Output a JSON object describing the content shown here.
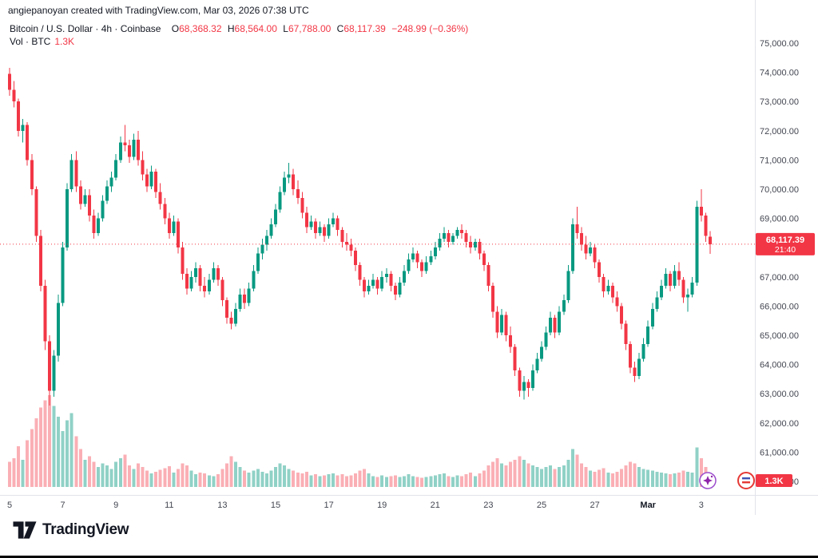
{
  "attribution": "angiepanoyan created with TradingView.com, Mar 03, 2026 07:38 UTC",
  "legend": {
    "title": "Bitcoin / U.S. Dollar · 4h · Coinbase",
    "o_label": "O",
    "o": "68,368.32",
    "h_label": "H",
    "h": "68,564.00",
    "l_label": "L",
    "l": "67,788.00",
    "c_label": "C",
    "c": "68,117.39",
    "change": "−248.99 (−0.36%)",
    "volume_label": "Vol · BTC",
    "volume_value": "1.3K"
  },
  "last_price": {
    "value": "68,117.39",
    "countdown": "21:40"
  },
  "volume_badge": "1.3K",
  "price_axis": {
    "ticks": [
      "75,000.00",
      "74,000.00",
      "73,000.00",
      "72,000.00",
      "71,000.00",
      "70,000.00",
      "69,000.00",
      "68,000.00",
      "67,000.00",
      "66,000.00",
      "65,000.00",
      "64,000.00",
      "63,000.00",
      "62,000.00",
      "61,000.00",
      "60,000.00"
    ]
  },
  "time_axis": {
    "labels": [
      {
        "text": "5",
        "candle": 0
      },
      {
        "text": "7",
        "candle": 12
      },
      {
        "text": "9",
        "candle": 24
      },
      {
        "text": "11",
        "candle": 36
      },
      {
        "text": "13",
        "candle": 48
      },
      {
        "text": "15",
        "candle": 60
      },
      {
        "text": "17",
        "candle": 72
      },
      {
        "text": "19",
        "candle": 84
      },
      {
        "text": "21",
        "candle": 96
      },
      {
        "text": "23",
        "candle": 108
      },
      {
        "text": "25",
        "candle": 120
      },
      {
        "text": "27",
        "candle": 132
      },
      {
        "text": "Mar",
        "candle": 144,
        "bold": true
      },
      {
        "text": "3",
        "candle": 156
      }
    ]
  },
  "footer": {
    "brand": "TradingView"
  },
  "icons": {
    "sticker_1": "sparkle",
    "sticker_2": "roundel"
  },
  "colors": {
    "up": "#089981",
    "down": "#F23645",
    "vol_up": "rgba(8,153,129,0.45)",
    "vol_down": "rgba(242,54,69,0.40)",
    "badge": "#F23645",
    "axis_text": "#434651",
    "separator": "#e0e3eb",
    "text_dark": "#131722"
  },
  "chart_data": {
    "type": "candlestick",
    "title": "Bitcoin / U.S. Dollar · 4h · Coinbase",
    "symbol": "BTCUSD",
    "interval": "4h",
    "exchange": "Coinbase",
    "ylim": [
      60000,
      75000
    ],
    "volume_axis_max": 10800,
    "grid": false,
    "legend_position": "top-left",
    "candles_note": "each candle is [open, high, low, close, volume_btc]; 4h candles Feb 5 00:00 through Mar 3 2026",
    "candles": [
      [
        73950,
        74150,
        73200,
        73400,
        2800
      ],
      [
        73400,
        73700,
        72800,
        73000,
        3200
      ],
      [
        73000,
        73100,
        71800,
        72000,
        4500
      ],
      [
        72000,
        72400,
        71600,
        72200,
        3000
      ],
      [
        72200,
        72300,
        70800,
        71000,
        5200
      ],
      [
        71000,
        71200,
        69800,
        70000,
        6400
      ],
      [
        70000,
        70100,
        68200,
        68400,
        7600
      ],
      [
        68400,
        68600,
        66500,
        66700,
        8800
      ],
      [
        66700,
        66900,
        64500,
        64800,
        9600
      ],
      [
        64800,
        65000,
        62600,
        63100,
        10200
      ],
      [
        63100,
        64500,
        62900,
        64300,
        9000
      ],
      [
        64300,
        66400,
        64100,
        66100,
        7800
      ],
      [
        66100,
        68200,
        66000,
        68000,
        6200
      ],
      [
        68000,
        70200,
        67900,
        70000,
        7400
      ],
      [
        70000,
        71200,
        69900,
        71000,
        8200
      ],
      [
        71000,
        71300,
        69900,
        70100,
        5600
      ],
      [
        70100,
        70300,
        69300,
        69500,
        4200
      ],
      [
        69500,
        70000,
        69400,
        69800,
        3000
      ],
      [
        69800,
        70000,
        68900,
        69100,
        3400
      ],
      [
        69100,
        69300,
        68300,
        68500,
        2800
      ],
      [
        68500,
        69200,
        68400,
        69000,
        2200
      ],
      [
        69000,
        69800,
        68900,
        69600,
        2600
      ],
      [
        69600,
        70300,
        69500,
        70100,
        2400
      ],
      [
        70100,
        70600,
        69900,
        70400,
        2000
      ],
      [
        70400,
        71200,
        70300,
        71000,
        2800
      ],
      [
        71000,
        71800,
        70900,
        71600,
        3200
      ],
      [
        71600,
        72200,
        71300,
        71500,
        3600
      ],
      [
        71500,
        71700,
        70900,
        71100,
        2400
      ],
      [
        71100,
        71900,
        71000,
        71700,
        2000
      ],
      [
        71700,
        72000,
        70800,
        71000,
        2600
      ],
      [
        71000,
        71300,
        70300,
        70500,
        2200
      ],
      [
        70500,
        70700,
        69900,
        70100,
        1800
      ],
      [
        70100,
        70800,
        70000,
        70600,
        1500
      ],
      [
        70600,
        70700,
        69700,
        69900,
        1700
      ],
      [
        69900,
        70200,
        69300,
        69500,
        1900
      ],
      [
        69500,
        69700,
        68800,
        69000,
        2100
      ],
      [
        69000,
        69200,
        68300,
        68500,
        2300
      ],
      [
        68500,
        69100,
        68400,
        68900,
        1600
      ],
      [
        68900,
        69000,
        67800,
        68000,
        2000
      ],
      [
        68000,
        68200,
        66900,
        67100,
        2600
      ],
      [
        67100,
        67300,
        66400,
        66600,
        2400
      ],
      [
        66600,
        67200,
        66500,
        67000,
        1800
      ],
      [
        67000,
        67500,
        66800,
        67300,
        1400
      ],
      [
        67300,
        67400,
        66500,
        66700,
        1600
      ],
      [
        66700,
        67000,
        66300,
        66500,
        1500
      ],
      [
        66500,
        67100,
        66400,
        66900,
        1300
      ],
      [
        66900,
        67500,
        66800,
        67300,
        1200
      ],
      [
        67300,
        67400,
        66700,
        66900,
        1400
      ],
      [
        66900,
        67000,
        66000,
        66200,
        2000
      ],
      [
        66200,
        66300,
        65400,
        65600,
        2600
      ],
      [
        65600,
        65800,
        65200,
        65400,
        3400
      ],
      [
        65400,
        66100,
        65300,
        65900,
        2800
      ],
      [
        65900,
        66600,
        65800,
        66400,
        2200
      ],
      [
        66400,
        66600,
        65900,
        66100,
        1800
      ],
      [
        66100,
        66800,
        66000,
        66600,
        1600
      ],
      [
        66600,
        67400,
        66500,
        67200,
        1800
      ],
      [
        67200,
        68000,
        67100,
        67800,
        2000
      ],
      [
        67800,
        68300,
        67600,
        68100,
        1700
      ],
      [
        68100,
        68600,
        67900,
        68400,
        1500
      ],
      [
        68400,
        69000,
        68300,
        68800,
        1800
      ],
      [
        68800,
        69500,
        68700,
        69300,
        2200
      ],
      [
        69300,
        70100,
        69200,
        69900,
        2600
      ],
      [
        69900,
        70600,
        69800,
        70400,
        2400
      ],
      [
        70400,
        70900,
        70200,
        70500,
        2000
      ],
      [
        70500,
        70700,
        69800,
        70000,
        1800
      ],
      [
        70000,
        70300,
        69500,
        69700,
        1600
      ],
      [
        69700,
        69900,
        69000,
        69200,
        1500
      ],
      [
        69200,
        69400,
        68500,
        68700,
        1700
      ],
      [
        68700,
        69100,
        68600,
        68900,
        1300
      ],
      [
        68900,
        69000,
        68300,
        68500,
        1400
      ],
      [
        68500,
        68900,
        68400,
        68700,
        1200
      ],
      [
        68700,
        68800,
        68200,
        68400,
        1300
      ],
      [
        68400,
        69000,
        68300,
        68800,
        1400
      ],
      [
        68800,
        69200,
        68700,
        69000,
        1500
      ],
      [
        69000,
        69100,
        68400,
        68600,
        1300
      ],
      [
        68600,
        68700,
        68000,
        68200,
        1400
      ],
      [
        68200,
        68500,
        67900,
        68100,
        1200
      ],
      [
        68100,
        68300,
        67700,
        67900,
        1300
      ],
      [
        67900,
        68000,
        67200,
        67400,
        1500
      ],
      [
        67400,
        67500,
        66700,
        66900,
        1800
      ],
      [
        66900,
        67000,
        66300,
        66500,
        2000
      ],
      [
        66500,
        66900,
        66400,
        66700,
        1500
      ],
      [
        66700,
        67100,
        66600,
        66900,
        1200
      ],
      [
        66900,
        67000,
        66400,
        66600,
        1100
      ],
      [
        66600,
        67200,
        66500,
        67000,
        1300
      ],
      [
        67000,
        67300,
        66800,
        67100,
        1100
      ],
      [
        67100,
        67200,
        66500,
        66700,
        1200
      ],
      [
        66700,
        66800,
        66200,
        66400,
        1300
      ],
      [
        66400,
        67000,
        66300,
        66800,
        1100
      ],
      [
        66800,
        67400,
        66700,
        67200,
        1200
      ],
      [
        67200,
        67800,
        67100,
        67600,
        1400
      ],
      [
        67600,
        68000,
        67500,
        67800,
        1200
      ],
      [
        67800,
        67900,
        67300,
        67500,
        1100
      ],
      [
        67500,
        67600,
        67000,
        67200,
        1000
      ],
      [
        67200,
        67700,
        67100,
        67500,
        1100
      ],
      [
        67500,
        67900,
        67400,
        67700,
        1200
      ],
      [
        67700,
        68200,
        67600,
        68000,
        1300
      ],
      [
        68000,
        68500,
        67900,
        68300,
        1400
      ],
      [
        68300,
        68700,
        68200,
        68500,
        1500
      ],
      [
        68500,
        68600,
        68000,
        68200,
        1200
      ],
      [
        68200,
        68500,
        68100,
        68400,
        1100
      ],
      [
        68400,
        68700,
        68300,
        68600,
        1300
      ],
      [
        68600,
        68800,
        68300,
        68500,
        1200
      ],
      [
        68500,
        68600,
        68000,
        68200,
        1400
      ],
      [
        68200,
        68400,
        67800,
        68000,
        1600
      ],
      [
        68000,
        68300,
        67900,
        68200,
        1200
      ],
      [
        68200,
        68300,
        67600,
        67800,
        1500
      ],
      [
        67800,
        67900,
        67200,
        67400,
        1800
      ],
      [
        67400,
        67500,
        66500,
        66700,
        2400
      ],
      [
        66700,
        66800,
        65600,
        65800,
        2800
      ],
      [
        65800,
        66000,
        64900,
        65100,
        3200
      ],
      [
        65100,
        65900,
        65000,
        65700,
        2600
      ],
      [
        65700,
        65800,
        64800,
        65000,
        2400
      ],
      [
        65000,
        65300,
        64400,
        64600,
        2800
      ],
      [
        64600,
        64700,
        63600,
        63800,
        3000
      ],
      [
        63800,
        63900,
        62900,
        63100,
        3400
      ],
      [
        63100,
        63600,
        62800,
        63400,
        3000
      ],
      [
        63400,
        63500,
        62900,
        63200,
        2600
      ],
      [
        63200,
        64000,
        63100,
        63800,
        2400
      ],
      [
        63800,
        64400,
        63700,
        64200,
        2200
      ],
      [
        64200,
        64800,
        64100,
        64600,
        2000
      ],
      [
        64600,
        65300,
        64500,
        65100,
        2200
      ],
      [
        65100,
        65800,
        65000,
        65600,
        2400
      ],
      [
        65600,
        65700,
        64900,
        65100,
        2000
      ],
      [
        65100,
        66000,
        65000,
        65800,
        2200
      ],
      [
        65800,
        66400,
        65700,
        66200,
        2400
      ],
      [
        66200,
        67400,
        66100,
        67200,
        3000
      ],
      [
        67200,
        69000,
        67100,
        68800,
        4200
      ],
      [
        68800,
        69400,
        68300,
        68500,
        3600
      ],
      [
        68500,
        68700,
        67900,
        68100,
        2600
      ],
      [
        68100,
        68400,
        67600,
        67800,
        2200
      ],
      [
        67800,
        68200,
        67700,
        68000,
        1800
      ],
      [
        68000,
        68100,
        67300,
        67500,
        1700
      ],
      [
        67500,
        67600,
        66800,
        67000,
        1900
      ],
      [
        67000,
        67100,
        66300,
        66500,
        2100
      ],
      [
        66500,
        66900,
        66400,
        66700,
        1600
      ],
      [
        66700,
        66800,
        66100,
        66300,
        1500
      ],
      [
        66300,
        66500,
        65800,
        66000,
        1700
      ],
      [
        66000,
        66100,
        65200,
        65400,
        2000
      ],
      [
        65400,
        65500,
        64500,
        64700,
        2400
      ],
      [
        64700,
        64800,
        63700,
        63900,
        2800
      ],
      [
        63900,
        64100,
        63400,
        63600,
        2600
      ],
      [
        63600,
        64400,
        63500,
        64200,
        2200
      ],
      [
        64200,
        64900,
        64100,
        64700,
        2000
      ],
      [
        64700,
        65500,
        64600,
        65300,
        1900
      ],
      [
        65300,
        66100,
        65200,
        65900,
        1800
      ],
      [
        65900,
        66500,
        65800,
        66300,
        1700
      ],
      [
        66300,
        66900,
        66200,
        66700,
        1600
      ],
      [
        66700,
        67300,
        66600,
        67100,
        1500
      ],
      [
        67100,
        67200,
        66500,
        66700,
        1400
      ],
      [
        66700,
        67400,
        66600,
        67200,
        1500
      ],
      [
        67200,
        67500,
        66700,
        66900,
        1600
      ],
      [
        66900,
        67000,
        66100,
        66300,
        1800
      ],
      [
        66300,
        66600,
        65800,
        66400,
        1700
      ],
      [
        66400,
        67000,
        66300,
        66800,
        1600
      ],
      [
        66800,
        69600,
        66700,
        69400,
        4400
      ],
      [
        69400,
        70000,
        68900,
        69100,
        3200
      ],
      [
        69100,
        69200,
        68200,
        68400,
        2200
      ],
      [
        68368.32,
        68564,
        67788,
        68117.39,
        1300
      ]
    ]
  }
}
